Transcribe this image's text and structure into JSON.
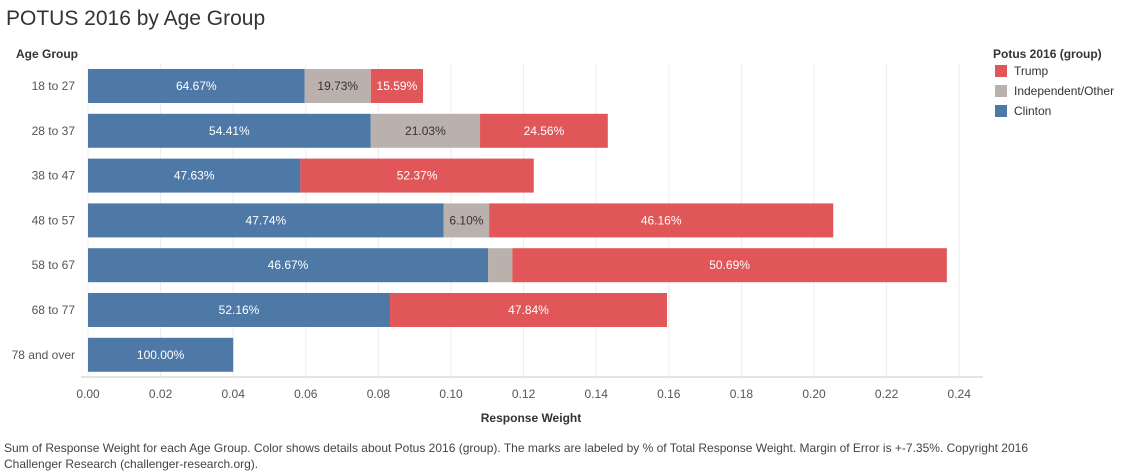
{
  "title": "POTUS 2016 by Age Group",
  "footnote": "Sum of Response Weight for each Age Group.  Color shows details about Potus 2016 (group).  The marks are labeled by % of Total Response Weight. Margin of Error is +-7.35%. Copyright 2016 Challenger Research (challenger-research.org).",
  "colors": {
    "Trump": "#e15759",
    "Independent/Other": "#bab0ac",
    "Clinton": "#4e79a7"
  },
  "chart_data": {
    "type": "bar",
    "orientation": "horizontal",
    "stacked": true,
    "title": "POTUS 2016 by Age Group",
    "row_header": "Age Group",
    "xlabel": "Response Weight",
    "xlim": [
      0,
      0.25
    ],
    "x_ticks": [
      "0.00",
      "0.02",
      "0.04",
      "0.06",
      "0.08",
      "0.10",
      "0.12",
      "0.14",
      "0.16",
      "0.18",
      "0.20",
      "0.22",
      "0.24"
    ],
    "grid": "vertical",
    "categories": [
      "18 to 27",
      "28 to 37",
      "38 to 47",
      "48 to 57",
      "58 to 67",
      "68 to 77",
      "78 and over"
    ],
    "series": [
      {
        "name": "Clinton",
        "values": [
          0.0597,
          0.0779,
          0.0585,
          0.098,
          0.1102,
          0.0832,
          0.04
        ],
        "labels": [
          "64.67%",
          "54.41%",
          "47.63%",
          "47.74%",
          "46.67%",
          "52.16%",
          "100.00%"
        ]
      },
      {
        "name": "Independent/Other",
        "values": [
          0.0182,
          0.0301,
          0,
          0.0125,
          0.0067,
          0,
          0
        ],
        "labels": [
          "19.73%",
          "21.03%",
          "",
          "6.10%",
          "",
          "",
          ""
        ]
      },
      {
        "name": "Trump",
        "values": [
          0.0144,
          0.0352,
          0.0643,
          0.0948,
          0.1197,
          0.0763,
          0
        ],
        "labels": [
          "15.59%",
          "24.56%",
          "52.37%",
          "46.16%",
          "50.69%",
          "47.84%",
          ""
        ]
      }
    ],
    "legend": {
      "title": "Potus 2016 (group)",
      "placement": "right",
      "items": [
        "Trump",
        "Independent/Other",
        "Clinton"
      ]
    }
  }
}
